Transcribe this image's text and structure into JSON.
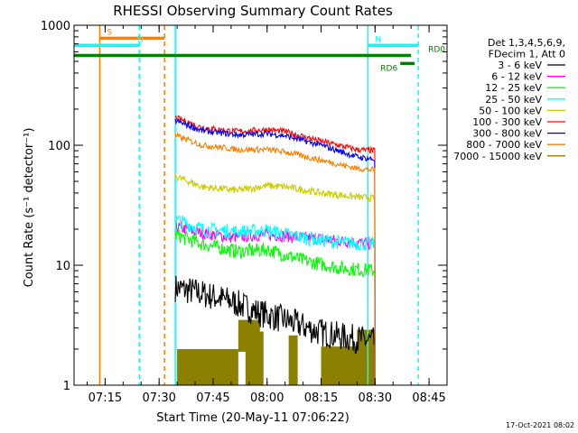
{
  "chart_data": {
    "type": "line",
    "title": "RHESSI Observing Summary Count Rates",
    "xlabel": "Start Time (20-May-11 07:06:22)",
    "ylabel": "Count Rate (s⁻¹ detector⁻¹)",
    "yscale": "log",
    "xlim": [
      "07:06:22",
      "08:50:00"
    ],
    "ylim": [
      1,
      1000
    ],
    "x_ticks": [
      "07:15",
      "07:30",
      "07:45",
      "08:00",
      "08:15",
      "08:30",
      "08:45"
    ],
    "y_ticks": [
      "1",
      "10",
      "100",
      "1000"
    ],
    "grid": false,
    "legend_position": "right",
    "legend_header": [
      "Det 1,3,4,5,6,9,",
      "FDecim 1, Att 0"
    ],
    "footer_date": "17-Oct-2021 08:02",
    "data_start": "07:34:30",
    "data_end": "08:30:00",
    "series": [
      {
        "name": "3 - 6 keV",
        "color": "#000000",
        "noise": 0.12,
        "points": [
          [
            "07:34:30",
            6.5
          ],
          [
            "07:40:00",
            6.0
          ],
          [
            "07:50:00",
            5.0
          ],
          [
            "07:58:00",
            4.0
          ],
          [
            "08:05:00",
            3.5
          ],
          [
            "08:14:00",
            2.8
          ],
          [
            "08:22:00",
            2.5
          ],
          [
            "08:30:00",
            2.3
          ]
        ]
      },
      {
        "name": "6 - 12 keV",
        "color": "#ff00ff",
        "noise": 0.05,
        "points": [
          [
            "07:34:30",
            21.0
          ],
          [
            "07:40:00",
            19.0
          ],
          [
            "07:50:00",
            17.0
          ],
          [
            "08:00:00",
            18.0
          ],
          [
            "08:10:00",
            17.0
          ],
          [
            "08:20:00",
            16.0
          ],
          [
            "08:30:00",
            15.0
          ]
        ]
      },
      {
        "name": "12 - 25 keV",
        "color": "#00ff00",
        "noise": 0.06,
        "points": [
          [
            "07:34:30",
            18.0
          ],
          [
            "07:42:00",
            15.0
          ],
          [
            "07:52:00",
            13.0
          ],
          [
            "08:00:00",
            13.5
          ],
          [
            "08:10:00",
            11.0
          ],
          [
            "08:20:00",
            9.5
          ],
          [
            "08:30:00",
            9.0
          ]
        ]
      },
      {
        "name": "25 - 50 keV",
        "color": "#00ffff",
        "noise": 0.06,
        "points": [
          [
            "07:34:30",
            24.0
          ],
          [
            "07:42:00",
            20.0
          ],
          [
            "07:52:00",
            19.0
          ],
          [
            "08:00:00",
            19.5
          ],
          [
            "08:10:00",
            17.0
          ],
          [
            "08:20:00",
            15.5
          ],
          [
            "08:30:00",
            15.0
          ]
        ]
      },
      {
        "name": "50 - 100 keV",
        "color": "#cccc00",
        "noise": 0.03,
        "points": [
          [
            "07:34:30",
            55.0
          ],
          [
            "07:42:00",
            45.0
          ],
          [
            "07:52:00",
            42.0
          ],
          [
            "08:00:00",
            46.0
          ],
          [
            "08:05:00",
            45.0
          ],
          [
            "08:15:00",
            40.0
          ],
          [
            "08:25:00",
            37.0
          ],
          [
            "08:30:00",
            36.0
          ]
        ]
      },
      {
        "name": "100 - 300 keV",
        "color": "#ff0000",
        "noise": 0.025,
        "points": [
          [
            "07:34:30",
            170.0
          ],
          [
            "07:42:00",
            140.0
          ],
          [
            "07:52:00",
            130.0
          ],
          [
            "08:00:00",
            135.0
          ],
          [
            "08:05:00",
            130.0
          ],
          [
            "08:15:00",
            108.0
          ],
          [
            "08:25:00",
            92.0
          ],
          [
            "08:30:00",
            90.0
          ]
        ]
      },
      {
        "name": "300 - 800 keV",
        "color": "#0000ff",
        "noise": 0.025,
        "points": [
          [
            "07:34:30",
            160.0
          ],
          [
            "07:42:00",
            132.0
          ],
          [
            "07:52:00",
            122.0
          ],
          [
            "08:00:00",
            125.0
          ],
          [
            "08:05:00",
            120.0
          ],
          [
            "08:15:00",
            100.0
          ],
          [
            "08:25:00",
            80.0
          ],
          [
            "08:30:00",
            76.0
          ]
        ]
      },
      {
        "name": "800 - 7000 keV",
        "color": "#ff8000",
        "noise": 0.025,
        "points": [
          [
            "07:34:30",
            120.0
          ],
          [
            "07:42:00",
            100.0
          ],
          [
            "07:52:00",
            92.0
          ],
          [
            "08:00:00",
            92.0
          ],
          [
            "08:05:00",
            88.0
          ],
          [
            "08:15:00",
            75.0
          ],
          [
            "08:25:00",
            64.0
          ],
          [
            "08:30:00",
            62.0
          ]
        ]
      },
      {
        "name": "7000 - 15000 keV",
        "color": "#8b8000",
        "noise": 0.0,
        "points": []
      }
    ],
    "flags": [
      {
        "label": "S",
        "color": "#ff8000",
        "start": "07:13:30",
        "end": "07:31:30",
        "value": 780
      },
      {
        "label": "N",
        "color": "#00ffff",
        "start": "07:06:22",
        "end": "07:24:30",
        "value": 680
      },
      {
        "label": "N",
        "color": "#00ffff",
        "start": "08:28:00",
        "end": "08:42:00",
        "value": 680
      },
      {
        "label": "RD0",
        "color": "#008000",
        "start": "07:06:22",
        "end": "08:40:00",
        "value": 560
      },
      {
        "label": "RD6",
        "color": "#008000",
        "start": "08:37:00",
        "end": "08:41:00",
        "value": 480
      }
    ],
    "vlines": [
      {
        "time": "07:13:30",
        "color": "#ff8000",
        "style": "solid"
      },
      {
        "time": "07:24:30",
        "color": "#00ffff",
        "style": "dashed"
      },
      {
        "time": "07:31:30",
        "color": "#ff8000",
        "style": "dashed"
      },
      {
        "time": "07:34:30",
        "color": "#00ffff",
        "style": "solid"
      },
      {
        "time": "08:28:00",
        "color": "#00ffff",
        "style": "solid"
      },
      {
        "time": "08:42:00",
        "color": "#00ffff",
        "style": "dashed"
      }
    ],
    "dark_band_segments": [
      [
        "07:35:00",
        "07:52:00",
        1.0,
        2.0
      ],
      [
        "07:54:00",
        "07:59:00",
        1.0,
        2.8
      ],
      [
        "07:52:00",
        "07:58:00",
        1.9,
        3.5
      ],
      [
        "08:06:00",
        "08:08:30",
        1.0,
        2.6
      ],
      [
        "08:15:00",
        "08:28:00",
        1.0,
        2.1
      ],
      [
        "08:25:00",
        "08:30:00",
        1.0,
        2.9
      ]
    ]
  }
}
